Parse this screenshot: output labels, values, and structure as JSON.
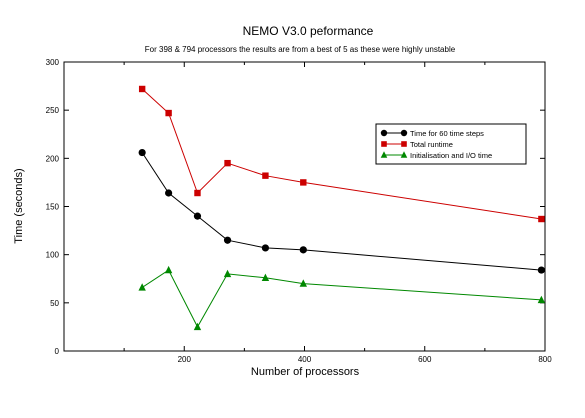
{
  "chart_data": {
    "type": "line",
    "title": "NEMO V3.0 peformance",
    "subtitle": "For 398 & 794 processors the results are from a best of 5 as these were highly unstable",
    "xlabel": "Number of processors",
    "ylabel": "Time (seconds)",
    "xlim": [
      0,
      800
    ],
    "ylim": [
      0,
      300
    ],
    "x_ticks": [
      200,
      400,
      600,
      800
    ],
    "y_ticks": [
      0,
      50,
      100,
      150,
      200,
      250,
      300
    ],
    "grid": false,
    "legend_position": "top-right",
    "series": [
      {
        "name": "Time for 60 time steps",
        "color": "#000000",
        "marker": "circle",
        "x": [
          130,
          174,
          222,
          272,
          335,
          398,
          794
        ],
        "y": [
          206,
          164,
          140,
          115,
          107,
          105,
          84
        ]
      },
      {
        "name": "Total runtime",
        "color": "#cc0000",
        "marker": "square",
        "x": [
          130,
          174,
          222,
          272,
          335,
          398,
          794
        ],
        "y": [
          272,
          247,
          164,
          195,
          182,
          175,
          137
        ]
      },
      {
        "name": "Initialisation and I/O time",
        "color": "#008800",
        "marker": "triangle",
        "x": [
          130,
          174,
          222,
          272,
          335,
          398,
          794
        ],
        "y": [
          66,
          84,
          25,
          80,
          76,
          70,
          53
        ]
      }
    ]
  }
}
